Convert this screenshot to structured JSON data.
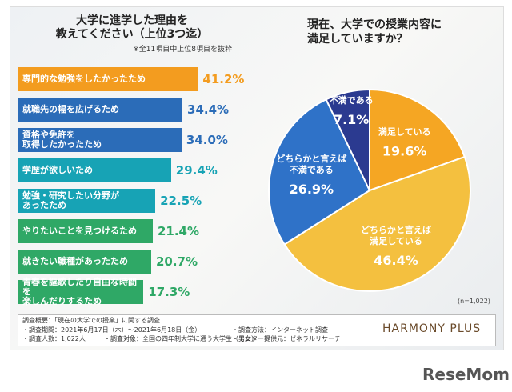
{
  "chart_data": [
    {
      "type": "bar",
      "title": "大学に進学した理由を\n教えてください（上位3つ迄）",
      "subtitle": "※全11項目中上位8項目を抜粋",
      "categories": [
        "専門的な勉強をしたかったため",
        "就職先の幅を広げるため",
        "資格や免許を\n取得したかったため",
        "学歴が欲しいため",
        "勉強・研究したい分野が\nあったため",
        "やりたいことを見つけるため",
        "就きたい職種があったため",
        "青春を謳歌したり自由な時間を\n楽しんだりするため"
      ],
      "values": [
        41.2,
        34.4,
        34.0,
        29.4,
        22.5,
        21.4,
        20.7,
        17.3
      ],
      "value_labels": [
        "41.2%",
        "34.4%",
        "34.0%",
        "29.4%",
        "22.5%",
        "21.4%",
        "20.7%",
        "17.3%"
      ],
      "colors": [
        "#f39c1f",
        "#2b6cb8",
        "#2b6cb8",
        "#17a3b5",
        "#17a3b5",
        "#2fa866",
        "#2fa866",
        "#2fa866"
      ]
    },
    {
      "type": "pie",
      "title": "現在、大学での授業内容に\n満足していますか？",
      "note": "(n=1,022)",
      "categories": [
        "満足している",
        "どちらかと言えば\n満足している",
        "どちらかと言えば\n不満である",
        "不満である"
      ],
      "values": [
        19.6,
        46.4,
        26.9,
        7.1
      ],
      "value_labels": [
        "19.6%",
        "46.4%",
        "26.9%",
        "7.1%"
      ],
      "colors": [
        "#f5a623",
        "#f4c03f",
        "#2f72c8",
        "#2b3a90"
      ]
    }
  ],
  "footer": {
    "heading": "調査概要：「現在の大学での授業」に関する調査",
    "items": [
      "・調査期間：2021年6月17日（木）〜2021年6月18日（金）",
      "・調査方法：インターネット調査",
      "・調査人数：1,022人",
      "・調査対象：全国の四年制大学に通う大学生（男女）",
      "・モニター提供元：ゼネラルリサーチ"
    ]
  },
  "logo": "HARMONY PLUS",
  "watermark": "ReseMom"
}
